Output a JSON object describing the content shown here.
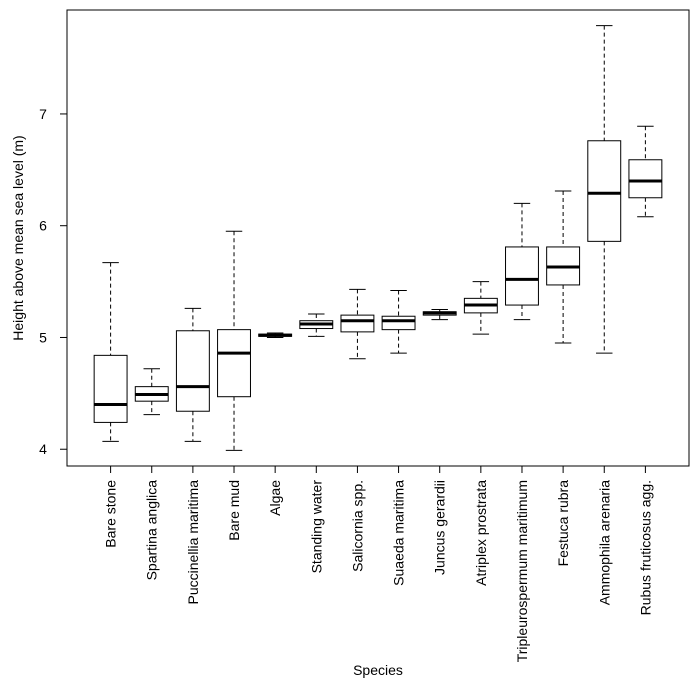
{
  "chart_data": {
    "type": "boxplot",
    "x_label": "Species",
    "y_label": "Height above mean sea level (m)",
    "categories": [
      "Bare stone",
      "Spartina anglica",
      "Puccinellia maritima",
      "Bare mud",
      "Algae",
      "Standing water",
      "Salicornia spp.",
      "Suaeda maritima",
      "Juncus gerardii",
      "Atriplex prostrata",
      "Tripleurospermum maritimum",
      "Festuca rubra",
      "Ammophila arenaria",
      "Rubus fruticosus agg."
    ],
    "boxes": [
      {
        "min": 4.07,
        "q1": 4.24,
        "median": 4.4,
        "q3": 4.84,
        "max": 5.67
      },
      {
        "min": 4.31,
        "q1": 4.43,
        "median": 4.49,
        "q3": 4.56,
        "max": 4.72
      },
      {
        "min": 4.07,
        "q1": 4.34,
        "median": 4.56,
        "q3": 5.06,
        "max": 5.26
      },
      {
        "min": 3.99,
        "q1": 4.47,
        "median": 4.86,
        "q3": 5.07,
        "max": 5.95
      },
      {
        "min": 5.0,
        "q1": 5.01,
        "median": 5.02,
        "q3": 5.03,
        "max": 5.04
      },
      {
        "min": 5.01,
        "q1": 5.08,
        "median": 5.12,
        "q3": 5.15,
        "max": 5.21
      },
      {
        "min": 4.81,
        "q1": 5.05,
        "median": 5.15,
        "q3": 5.2,
        "max": 5.43
      },
      {
        "min": 4.86,
        "q1": 5.07,
        "median": 5.15,
        "q3": 5.19,
        "max": 5.42
      },
      {
        "min": 5.16,
        "q1": 5.2,
        "median": 5.22,
        "q3": 5.23,
        "max": 5.25
      },
      {
        "min": 5.03,
        "q1": 5.22,
        "median": 5.29,
        "q3": 5.35,
        "max": 5.5
      },
      {
        "min": 5.16,
        "q1": 5.29,
        "median": 5.52,
        "q3": 5.81,
        "max": 6.2
      },
      {
        "min": 4.95,
        "q1": 5.47,
        "median": 5.63,
        "q3": 5.81,
        "max": 6.31
      },
      {
        "min": 4.86,
        "q1": 5.86,
        "median": 6.29,
        "q3": 6.76,
        "max": 7.79
      },
      {
        "min": 6.08,
        "q1": 6.25,
        "median": 6.4,
        "q3": 6.59,
        "max": 6.89
      }
    ],
    "ylim": [
      3.85,
      7.93
    ],
    "yticks": [
      4,
      5,
      6,
      7
    ],
    "color": "#000000"
  }
}
